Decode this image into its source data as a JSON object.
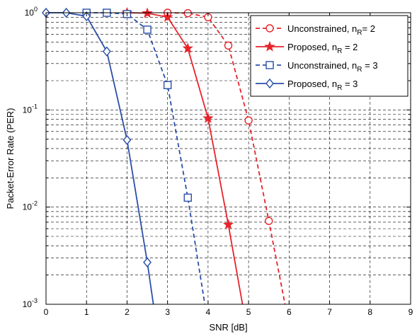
{
  "chart_data": {
    "type": "line",
    "xlabel": "SNR [dB]",
    "ylabel": "Packet-Error Rate (PER)",
    "xlim": [
      0,
      9
    ],
    "ylim": [
      0.001,
      1
    ],
    "y_scale": "log",
    "grid": true,
    "legend_position": "top-right",
    "x_ticks": [
      "0",
      "1",
      "2",
      "3",
      "4",
      "5",
      "6",
      "7",
      "8",
      "9"
    ],
    "y_ticks": [
      {
        "base": "10",
        "exp": "0"
      },
      {
        "base": "10",
        "exp": "-1"
      },
      {
        "base": "10",
        "exp": "-2"
      },
      {
        "base": "10",
        "exp": "-3"
      }
    ],
    "series": [
      {
        "legend_base": "Unconstrained, n",
        "legend_sub": "R",
        "legend_tail": "= 2",
        "color": "#e8232a",
        "dash": "dashed",
        "marker": "circle",
        "x": [
          3.0,
          3.5,
          4.0,
          4.5,
          5.0,
          5.5,
          5.9
        ],
        "y": [
          1.0,
          0.99,
          0.9,
          0.46,
          0.078,
          0.0072,
          0.001
        ]
      },
      {
        "legend_base": "Proposed, n",
        "legend_sub": "R",
        "legend_tail": " = 2",
        "color": "#e8232a",
        "dash": "solid",
        "marker": "star",
        "x": [
          2.0,
          2.5,
          3.0,
          3.5,
          4.0,
          4.5,
          4.85
        ],
        "y": [
          1.0,
          0.99,
          0.9,
          0.43,
          0.082,
          0.0066,
          0.001
        ]
      },
      {
        "legend_base": "Unconstrained, n",
        "legend_sub": "R",
        "legend_tail": " = 3",
        "color": "#2b4fa8",
        "dash": "dashed",
        "marker": "square",
        "x": [
          1.0,
          1.5,
          2.0,
          2.5,
          3.0,
          3.5,
          3.92
        ],
        "y": [
          1.0,
          1.0,
          0.97,
          0.67,
          0.18,
          0.0125,
          0.001
        ]
      },
      {
        "legend_base": "Proposed, n",
        "legend_sub": "R",
        "legend_tail": " = 3",
        "color": "#2b4fa8",
        "dash": "solid",
        "marker": "diamond",
        "x": [
          0.0,
          0.5,
          1.0,
          1.5,
          2.0,
          2.5,
          2.65
        ],
        "y": [
          1.0,
          1.0,
          0.92,
          0.4,
          0.049,
          0.0027,
          0.001
        ]
      }
    ]
  }
}
